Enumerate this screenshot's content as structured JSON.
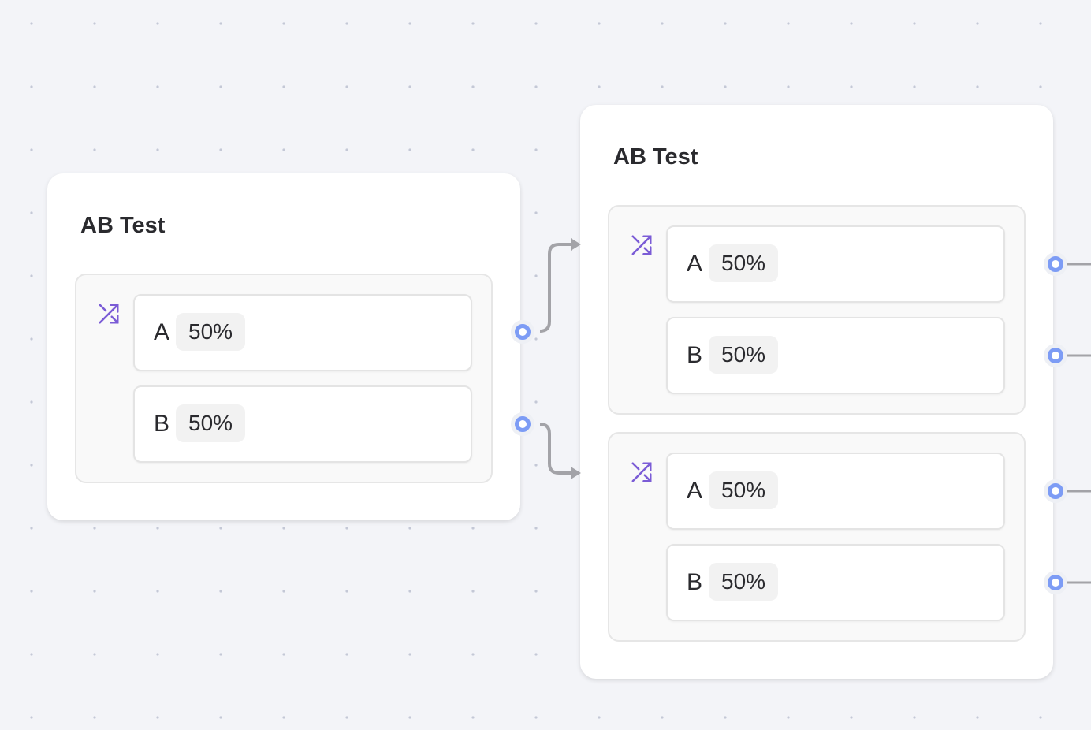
{
  "nodes": [
    {
      "title": "AB Test",
      "groups": [
        {
          "icon": "shuffle-icon",
          "variants": [
            {
              "label": "A",
              "split": "50%"
            },
            {
              "label": "B",
              "split": "50%"
            }
          ]
        }
      ]
    },
    {
      "title": "AB Test",
      "groups": [
        {
          "icon": "shuffle-icon",
          "variants": [
            {
              "label": "A",
              "split": "50%"
            },
            {
              "label": "B",
              "split": "50%"
            }
          ]
        },
        {
          "icon": "shuffle-icon",
          "variants": [
            {
              "label": "A",
              "split": "50%"
            },
            {
              "label": "B",
              "split": "50%"
            }
          ]
        }
      ]
    }
  ],
  "colors": {
    "accent": "#7b5cd6",
    "handle": "#7d9cf5",
    "edge": "#a3a3a8",
    "canvas": "#f3f4f8"
  }
}
